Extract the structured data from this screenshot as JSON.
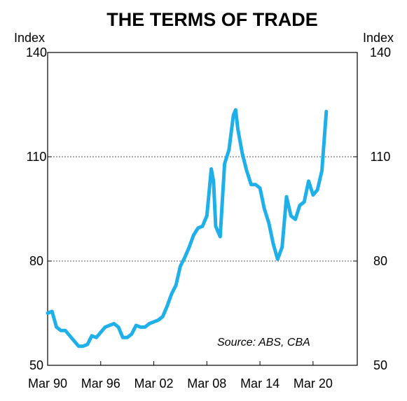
{
  "chart_data": {
    "type": "line",
    "title": "THE TERMS OF TRADE",
    "ylabel_left": "Index",
    "ylabel_right": "Index",
    "ylim": [
      50,
      140
    ],
    "yticks": [
      50,
      80,
      110,
      140
    ],
    "yticks_labels": [
      "50",
      "80",
      "110",
      "140"
    ],
    "xlim": [
      1990.0,
      2025.0
    ],
    "xticks": [
      1990.0,
      1996.0,
      2002.0,
      2008.0,
      2014.0,
      2020.0
    ],
    "xticks_labels": [
      "Mar 90",
      "Mar 96",
      "Mar 02",
      "Mar 08",
      "Mar 14",
      "Mar 20"
    ],
    "gridlines_y": [
      80,
      110
    ],
    "grid": "horizontal dotted",
    "annotation": "Source: ABS, CBA",
    "series": [
      {
        "color": "#1fb0ea",
        "x": [
          1990.0,
          1990.5,
          1991.0,
          1991.5,
          1992.0,
          1992.5,
          1993.0,
          1993.5,
          1994.0,
          1994.5,
          1995.0,
          1995.5,
          1996.0,
          1996.5,
          1997.0,
          1997.5,
          1998.0,
          1998.5,
          1999.0,
          1999.5,
          2000.0,
          2000.5,
          2001.0,
          2001.5,
          2002.0,
          2002.5,
          2003.0,
          2003.5,
          2004.0,
          2004.5,
          2005.0,
          2005.5,
          2006.0,
          2006.5,
          2007.0,
          2007.5,
          2008.0,
          2008.5,
          2008.75,
          2009.0,
          2009.25,
          2009.5,
          2010.0,
          2010.5,
          2011.0,
          2011.25,
          2011.5,
          2012.0,
          2012.5,
          2013.0,
          2013.5,
          2014.0,
          2014.5,
          2015.0,
          2015.5,
          2016.0,
          2016.5,
          2017.0,
          2017.5,
          2018.0,
          2018.5,
          2019.0,
          2019.5,
          2020.0,
          2020.5,
          2021.0,
          2021.5
        ],
        "values": [
          65,
          65.5,
          61,
          60,
          60,
          58.5,
          57,
          55.5,
          55.5,
          56,
          58.5,
          58,
          59.5,
          61,
          61.5,
          62,
          61,
          58,
          58,
          59,
          61.5,
          61,
          61,
          62,
          62.5,
          63,
          64,
          67,
          70.5,
          73,
          78.5,
          81,
          84,
          87.5,
          89.5,
          90,
          93,
          106.5,
          103,
          90,
          88.5,
          87,
          108,
          112,
          122,
          123.5,
          118,
          111,
          106,
          102,
          102,
          101,
          95,
          91,
          85,
          80.5,
          84,
          98.5,
          93,
          92,
          96,
          97,
          103,
          99,
          100.5,
          106,
          123
        ]
      }
    ]
  }
}
